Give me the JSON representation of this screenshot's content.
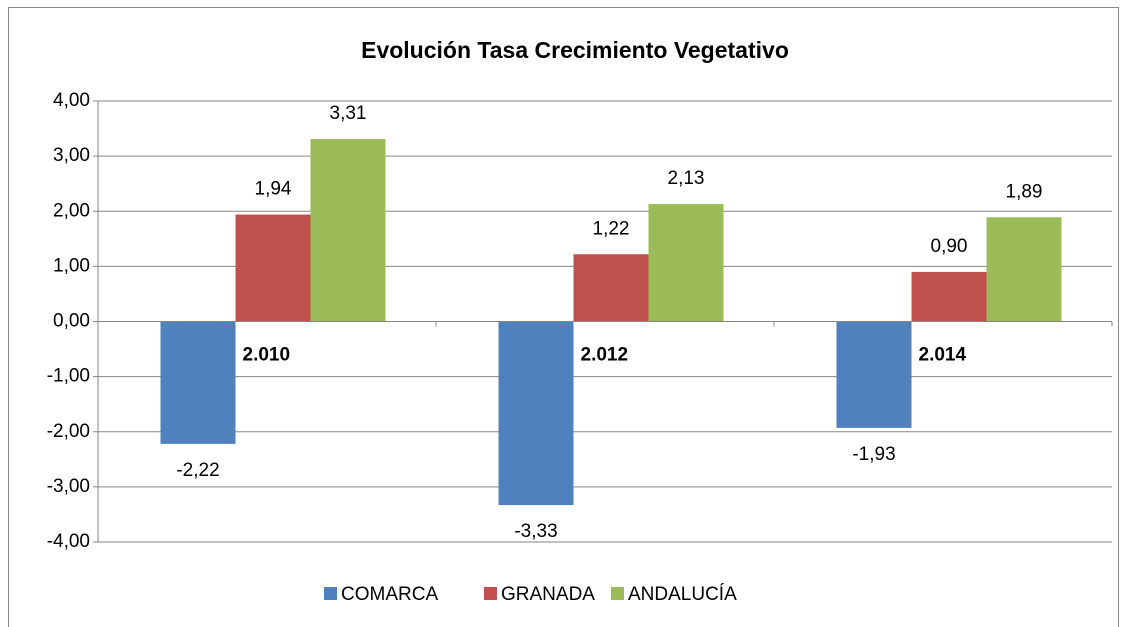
{
  "chart_data": {
    "type": "bar",
    "title": "Evolución Tasa Crecimiento Vegetativo",
    "categories": [
      "2.010",
      "2.012",
      "2.014"
    ],
    "series": [
      {
        "name": "COMARCA",
        "color": "#4f81bd",
        "values": [
          -2.22,
          -3.33,
          -1.93
        ],
        "value_labels": [
          "-2,22",
          "-3,33",
          "-1,93"
        ]
      },
      {
        "name": "GRANADA",
        "color": "#c0504d",
        "values": [
          1.94,
          1.22,
          0.9
        ],
        "value_labels": [
          "1,94",
          "1,22",
          "0,90"
        ]
      },
      {
        "name": "ANDALUCÍA",
        "color": "#9bbb59",
        "values": [
          3.31,
          2.13,
          1.89
        ],
        "value_labels": [
          "3,31",
          "2,13",
          "1,89"
        ]
      }
    ],
    "ylim": [
      -4,
      4
    ],
    "yticks": [
      {
        "value": -4,
        "label": "-4,00"
      },
      {
        "value": -3,
        "label": "-3,00"
      },
      {
        "value": -2,
        "label": "-2,00"
      },
      {
        "value": -1,
        "label": "-1,00"
      },
      {
        "value": 0,
        "label": "0,00"
      },
      {
        "value": 1,
        "label": "1,00"
      },
      {
        "value": 2,
        "label": "2,00"
      },
      {
        "value": 3,
        "label": "3,00"
      },
      {
        "value": 4,
        "label": "4,00"
      }
    ],
    "grid": true,
    "legend": "bottom"
  }
}
